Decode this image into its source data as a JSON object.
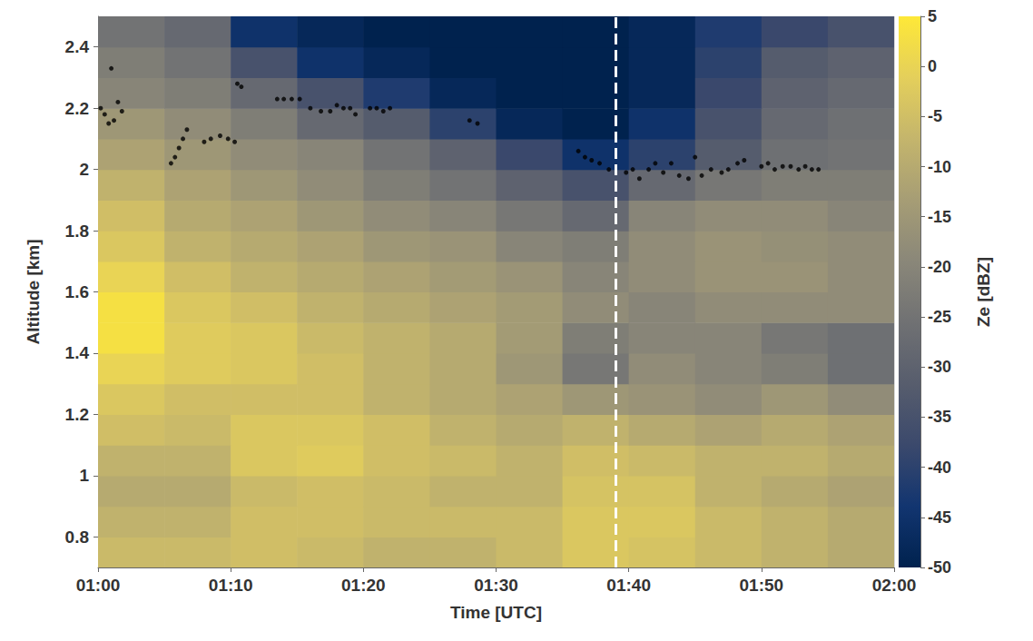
{
  "chart_data": {
    "type": "heatmap",
    "x_label": "Time [UTC]",
    "y_label": "Altitude [km]",
    "xlim": [
      0,
      60
    ],
    "xticks": [
      {
        "value": 0,
        "label": "01:00"
      },
      {
        "value": 10,
        "label": "01:10"
      },
      {
        "value": 20,
        "label": "01:20"
      },
      {
        "value": 30,
        "label": "01:30"
      },
      {
        "value": 40,
        "label": "01:40"
      },
      {
        "value": 50,
        "label": "01:50"
      },
      {
        "value": 60,
        "label": "02:00"
      }
    ],
    "ylim": [
      0.7,
      2.5
    ],
    "yticks": [
      0.8,
      1,
      1.2,
      1.4,
      1.6,
      1.8,
      2,
      2.2,
      2.4
    ],
    "grid": true,
    "x_bins": [
      0,
      5,
      10,
      15,
      20,
      25,
      30,
      35,
      40,
      45,
      50,
      55,
      60
    ],
    "y_bins": [
      0.7,
      0.8,
      0.9,
      1.0,
      1.1,
      1.2,
      1.3,
      1.4,
      1.5,
      1.6,
      1.7,
      1.8,
      1.9,
      2.0,
      2.1,
      2.2,
      2.3,
      2.4,
      2.5
    ],
    "cells": [
      [
        -6,
        -6,
        -5,
        -6,
        -8,
        -8,
        -6,
        -3,
        -4,
        -6,
        -8,
        -10
      ],
      [
        -8,
        -8,
        -5,
        -5,
        -6,
        -6,
        -6,
        -3,
        -3,
        -6,
        -8,
        -10
      ],
      [
        -10,
        -10,
        -6,
        -5,
        -6,
        -8,
        -8,
        -4,
        -4,
        -8,
        -10,
        -12
      ],
      [
        -8,
        -8,
        -3,
        -2,
        -5,
        -6,
        -8,
        -5,
        -6,
        -8,
        -8,
        -10
      ],
      [
        -5,
        -6,
        -3,
        -3,
        -5,
        -8,
        -10,
        -8,
        -10,
        -12,
        -10,
        -12
      ],
      [
        -3,
        -5,
        -5,
        -5,
        -8,
        -10,
        -12,
        -15,
        -16,
        -18,
        -15,
        -18
      ],
      [
        0,
        -2,
        -3,
        -5,
        -8,
        -10,
        -15,
        -24,
        -18,
        -20,
        -22,
        -26
      ],
      [
        3,
        -2,
        -3,
        -6,
        -8,
        -10,
        -14,
        -22,
        -20,
        -20,
        -24,
        -26
      ],
      [
        3,
        -3,
        -5,
        -8,
        -10,
        -12,
        -14,
        -18,
        -20,
        -18,
        -18,
        -18
      ],
      [
        0,
        -5,
        -8,
        -10,
        -12,
        -14,
        -16,
        -20,
        -18,
        -16,
        -16,
        -18
      ],
      [
        -3,
        -8,
        -10,
        -12,
        -15,
        -16,
        -20,
        -22,
        -18,
        -16,
        -17,
        -18
      ],
      [
        -5,
        -10,
        -12,
        -15,
        -18,
        -20,
        -24,
        -28,
        -20,
        -18,
        -18,
        -20
      ],
      [
        -8,
        -12,
        -15,
        -18,
        -22,
        -25,
        -30,
        -35,
        -28,
        -24,
        -22,
        -22
      ],
      [
        -12,
        -15,
        -18,
        -20,
        -25,
        -30,
        -38,
        -45,
        -40,
        -32,
        -26,
        -25
      ],
      [
        -15,
        -18,
        -22,
        -28,
        -32,
        -40,
        -48,
        -50,
        -45,
        -35,
        -28,
        -26
      ],
      [
        -20,
        -22,
        -28,
        -35,
        -42,
        -48,
        -50,
        -50,
        -48,
        -38,
        -30,
        -28
      ],
      [
        -22,
        -25,
        -35,
        -45,
        -48,
        -50,
        -50,
        -50,
        -48,
        -40,
        -32,
        -30
      ],
      [
        -25,
        -28,
        -45,
        -48,
        -50,
        -50,
        -50,
        -50,
        -48,
        -42,
        -38,
        -35
      ]
    ],
    "colorbar": {
      "label": "Ze [dBZ]",
      "range": [
        -50,
        5
      ],
      "ticks": [
        -50,
        -45,
        -40,
        -35,
        -30,
        -25,
        -20,
        -15,
        -10,
        -5,
        0,
        5
      ]
    },
    "points": {
      "color": "#000000",
      "marker": "circle",
      "x": [
        0.2,
        0.5,
        0.8,
        1.0,
        1.2,
        1.5,
        1.8,
        5.5,
        5.8,
        6.1,
        6.4,
        6.7,
        8.0,
        8.5,
        9.2,
        9.8,
        10.3,
        10.5,
        10.8,
        13.5,
        14.0,
        14.6,
        15.2,
        16.0,
        16.8,
        17.5,
        18.0,
        18.5,
        19.0,
        19.4,
        20.5,
        21.0,
        21.5,
        22.0,
        28.0,
        28.6,
        36.2,
        36.7,
        37.2,
        37.8,
        38.5,
        39.8,
        40.3,
        40.8,
        41.5,
        42.0,
        42.6,
        43.2,
        43.8,
        44.5,
        45.0,
        45.5,
        46.2,
        47.0,
        47.5,
        48.2,
        48.7,
        50.0,
        50.5,
        51.0,
        51.6,
        52.2,
        52.8,
        53.3,
        53.8,
        54.3
      ],
      "y": [
        2.2,
        2.18,
        2.15,
        2.33,
        2.16,
        2.22,
        2.19,
        2.02,
        2.04,
        2.07,
        2.1,
        2.13,
        2.09,
        2.1,
        2.11,
        2.1,
        2.09,
        2.28,
        2.27,
        2.23,
        2.23,
        2.23,
        2.23,
        2.2,
        2.19,
        2.19,
        2.21,
        2.2,
        2.2,
        2.18,
        2.2,
        2.2,
        2.19,
        2.2,
        2.16,
        2.15,
        2.06,
        2.04,
        2.03,
        2.02,
        2.0,
        1.99,
        2.0,
        1.97,
        2.0,
        2.02,
        1.99,
        2.02,
        1.98,
        1.97,
        2.04,
        1.98,
        2.0,
        1.99,
        2.0,
        2.02,
        2.03,
        2.01,
        2.02,
        2.0,
        2.01,
        2.01,
        2.0,
        2.01,
        2.0,
        2.0
      ]
    },
    "vline": {
      "x": 39,
      "color": "#ffffff",
      "line_style": "dashed"
    }
  }
}
